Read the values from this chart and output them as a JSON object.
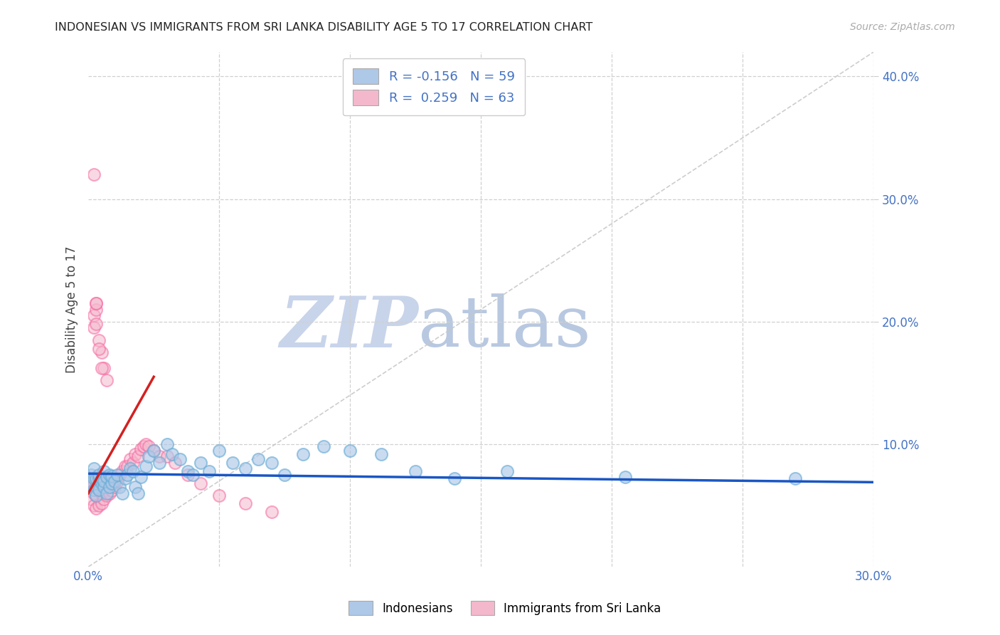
{
  "title": "INDONESIAN VS IMMIGRANTS FROM SRI LANKA DISABILITY AGE 5 TO 17 CORRELATION CHART",
  "source": "Source: ZipAtlas.com",
  "ylabel": "Disability Age 5 to 17",
  "xlim": [
    0.0,
    0.3
  ],
  "ylim": [
    0.0,
    0.42
  ],
  "xtick_positions": [
    0.0,
    0.05,
    0.1,
    0.15,
    0.2,
    0.25,
    0.3
  ],
  "xtick_labels": [
    "0.0%",
    "",
    "",
    "",
    "",
    "",
    "30.0%"
  ],
  "yticks_right": [
    0.1,
    0.2,
    0.3,
    0.4
  ],
  "yticks_right_labels": [
    "10.0%",
    "20.0%",
    "30.0%",
    "40.0%"
  ],
  "yticks_grid": [
    0.1,
    0.2,
    0.3,
    0.4
  ],
  "legend_r_blue": "-0.156",
  "legend_n_blue": "59",
  "legend_r_pink": "0.259",
  "legend_n_pink": "63",
  "blue_fill_color": "#aec8e8",
  "blue_edge_color": "#6baed6",
  "pink_fill_color": "#f4b8cc",
  "pink_edge_color": "#f768a1",
  "trend_blue_color": "#1a56c4",
  "trend_pink_color": "#d42020",
  "diag_color": "#c8c8c8",
  "watermark_zip_color": "#c8d4ea",
  "watermark_atlas_color": "#b8c8e0",
  "legend_label_blue": "Indonesians",
  "legend_label_pink": "Immigrants from Sri Lanka",
  "blue_x": [
    0.001,
    0.001,
    0.002,
    0.002,
    0.002,
    0.003,
    0.003,
    0.003,
    0.004,
    0.004,
    0.004,
    0.005,
    0.005,
    0.006,
    0.006,
    0.006,
    0.007,
    0.007,
    0.008,
    0.008,
    0.009,
    0.009,
    0.01,
    0.011,
    0.012,
    0.013,
    0.014,
    0.015,
    0.016,
    0.017,
    0.018,
    0.019,
    0.02,
    0.022,
    0.023,
    0.025,
    0.027,
    0.03,
    0.032,
    0.035,
    0.038,
    0.04,
    0.043,
    0.046,
    0.05,
    0.055,
    0.06,
    0.065,
    0.07,
    0.075,
    0.082,
    0.09,
    0.1,
    0.112,
    0.125,
    0.14,
    0.16,
    0.205,
    0.27
  ],
  "blue_y": [
    0.075,
    0.068,
    0.072,
    0.063,
    0.08,
    0.065,
    0.072,
    0.058,
    0.072,
    0.063,
    0.075,
    0.068,
    0.072,
    0.065,
    0.07,
    0.078,
    0.06,
    0.073,
    0.065,
    0.075,
    0.068,
    0.074,
    0.07,
    0.075,
    0.065,
    0.06,
    0.072,
    0.075,
    0.08,
    0.078,
    0.065,
    0.06,
    0.073,
    0.082,
    0.09,
    0.095,
    0.085,
    0.1,
    0.092,
    0.088,
    0.078,
    0.075,
    0.085,
    0.078,
    0.095,
    0.085,
    0.08,
    0.088,
    0.085,
    0.075,
    0.092,
    0.098,
    0.095,
    0.092,
    0.078,
    0.072,
    0.078,
    0.073,
    0.072
  ],
  "pink_x": [
    0.001,
    0.001,
    0.001,
    0.002,
    0.002,
    0.002,
    0.002,
    0.003,
    0.003,
    0.003,
    0.003,
    0.004,
    0.004,
    0.004,
    0.005,
    0.005,
    0.005,
    0.006,
    0.006,
    0.006,
    0.007,
    0.007,
    0.007,
    0.008,
    0.008,
    0.009,
    0.009,
    0.01,
    0.011,
    0.012,
    0.013,
    0.014,
    0.015,
    0.016,
    0.017,
    0.018,
    0.019,
    0.02,
    0.021,
    0.022,
    0.023,
    0.025,
    0.027,
    0.03,
    0.033,
    0.038,
    0.043,
    0.05,
    0.06,
    0.07,
    0.002,
    0.002,
    0.003,
    0.003,
    0.004,
    0.005,
    0.006,
    0.007,
    0.002,
    0.003,
    0.003,
    0.004,
    0.005
  ],
  "pink_y": [
    0.065,
    0.055,
    0.068,
    0.05,
    0.06,
    0.068,
    0.072,
    0.048,
    0.058,
    0.065,
    0.07,
    0.05,
    0.062,
    0.068,
    0.052,
    0.06,
    0.068,
    0.055,
    0.062,
    0.068,
    0.058,
    0.065,
    0.07,
    0.06,
    0.068,
    0.062,
    0.068,
    0.065,
    0.07,
    0.075,
    0.078,
    0.082,
    0.082,
    0.088,
    0.085,
    0.092,
    0.09,
    0.096,
    0.098,
    0.1,
    0.098,
    0.095,
    0.09,
    0.09,
    0.085,
    0.075,
    0.068,
    0.058,
    0.052,
    0.045,
    0.195,
    0.205,
    0.21,
    0.215,
    0.185,
    0.175,
    0.162,
    0.152,
    0.32,
    0.215,
    0.198,
    0.178,
    0.162
  ],
  "blue_trend_x0": 0.0,
  "blue_trend_x1": 0.3,
  "blue_trend_y0": 0.076,
  "blue_trend_y1": 0.069,
  "pink_trend_x0": 0.0,
  "pink_trend_x1": 0.025,
  "pink_trend_y0": 0.06,
  "pink_trend_y1": 0.155
}
